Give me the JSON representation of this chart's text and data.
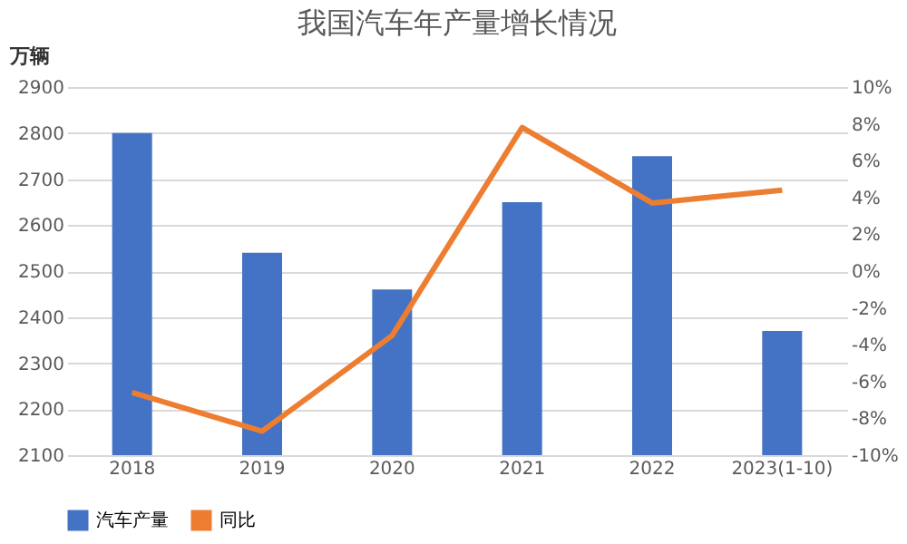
{
  "chart_data": {
    "type": "bar",
    "title": "我国汽车年产量增长情况",
    "ylabel": "万辆",
    "categories": [
      "2018",
      "2019",
      "2020",
      "2021",
      "2022",
      "2023(1-10)"
    ],
    "series": [
      {
        "name": "汽车产量",
        "color": "#4472c4",
        "values": [
          2800,
          2540,
          2460,
          2650,
          2750,
          2370
        ]
      },
      {
        "name": "同比",
        "type": "line",
        "axis": "y2",
        "color": "#ed7d31",
        "marker": "none",
        "values": [
          -6.6,
          -8.7,
          -3.5,
          7.8,
          3.7,
          4.4
        ]
      }
    ],
    "ylim": [
      2100,
      2900
    ],
    "yticks": [
      2100,
      2200,
      2300,
      2400,
      2500,
      2600,
      2700,
      2800,
      2900
    ],
    "y2lim": [
      -10,
      10
    ],
    "y2ticks": [
      {
        "value": -10,
        "label": "-10%"
      },
      {
        "value": -8,
        "label": "-8%"
      },
      {
        "value": -6,
        "label": "-6%"
      },
      {
        "value": -4,
        "label": "-4%"
      },
      {
        "value": -2,
        "label": "-2%"
      },
      {
        "value": 0,
        "label": "0%"
      },
      {
        "value": 2,
        "label": "2%"
      },
      {
        "value": 4,
        "label": "4%"
      },
      {
        "value": 6,
        "label": "6%"
      },
      {
        "value": 8,
        "label": "8%"
      },
      {
        "value": 10,
        "label": "10%"
      }
    ],
    "grid": "y",
    "legend": "bottom"
  }
}
